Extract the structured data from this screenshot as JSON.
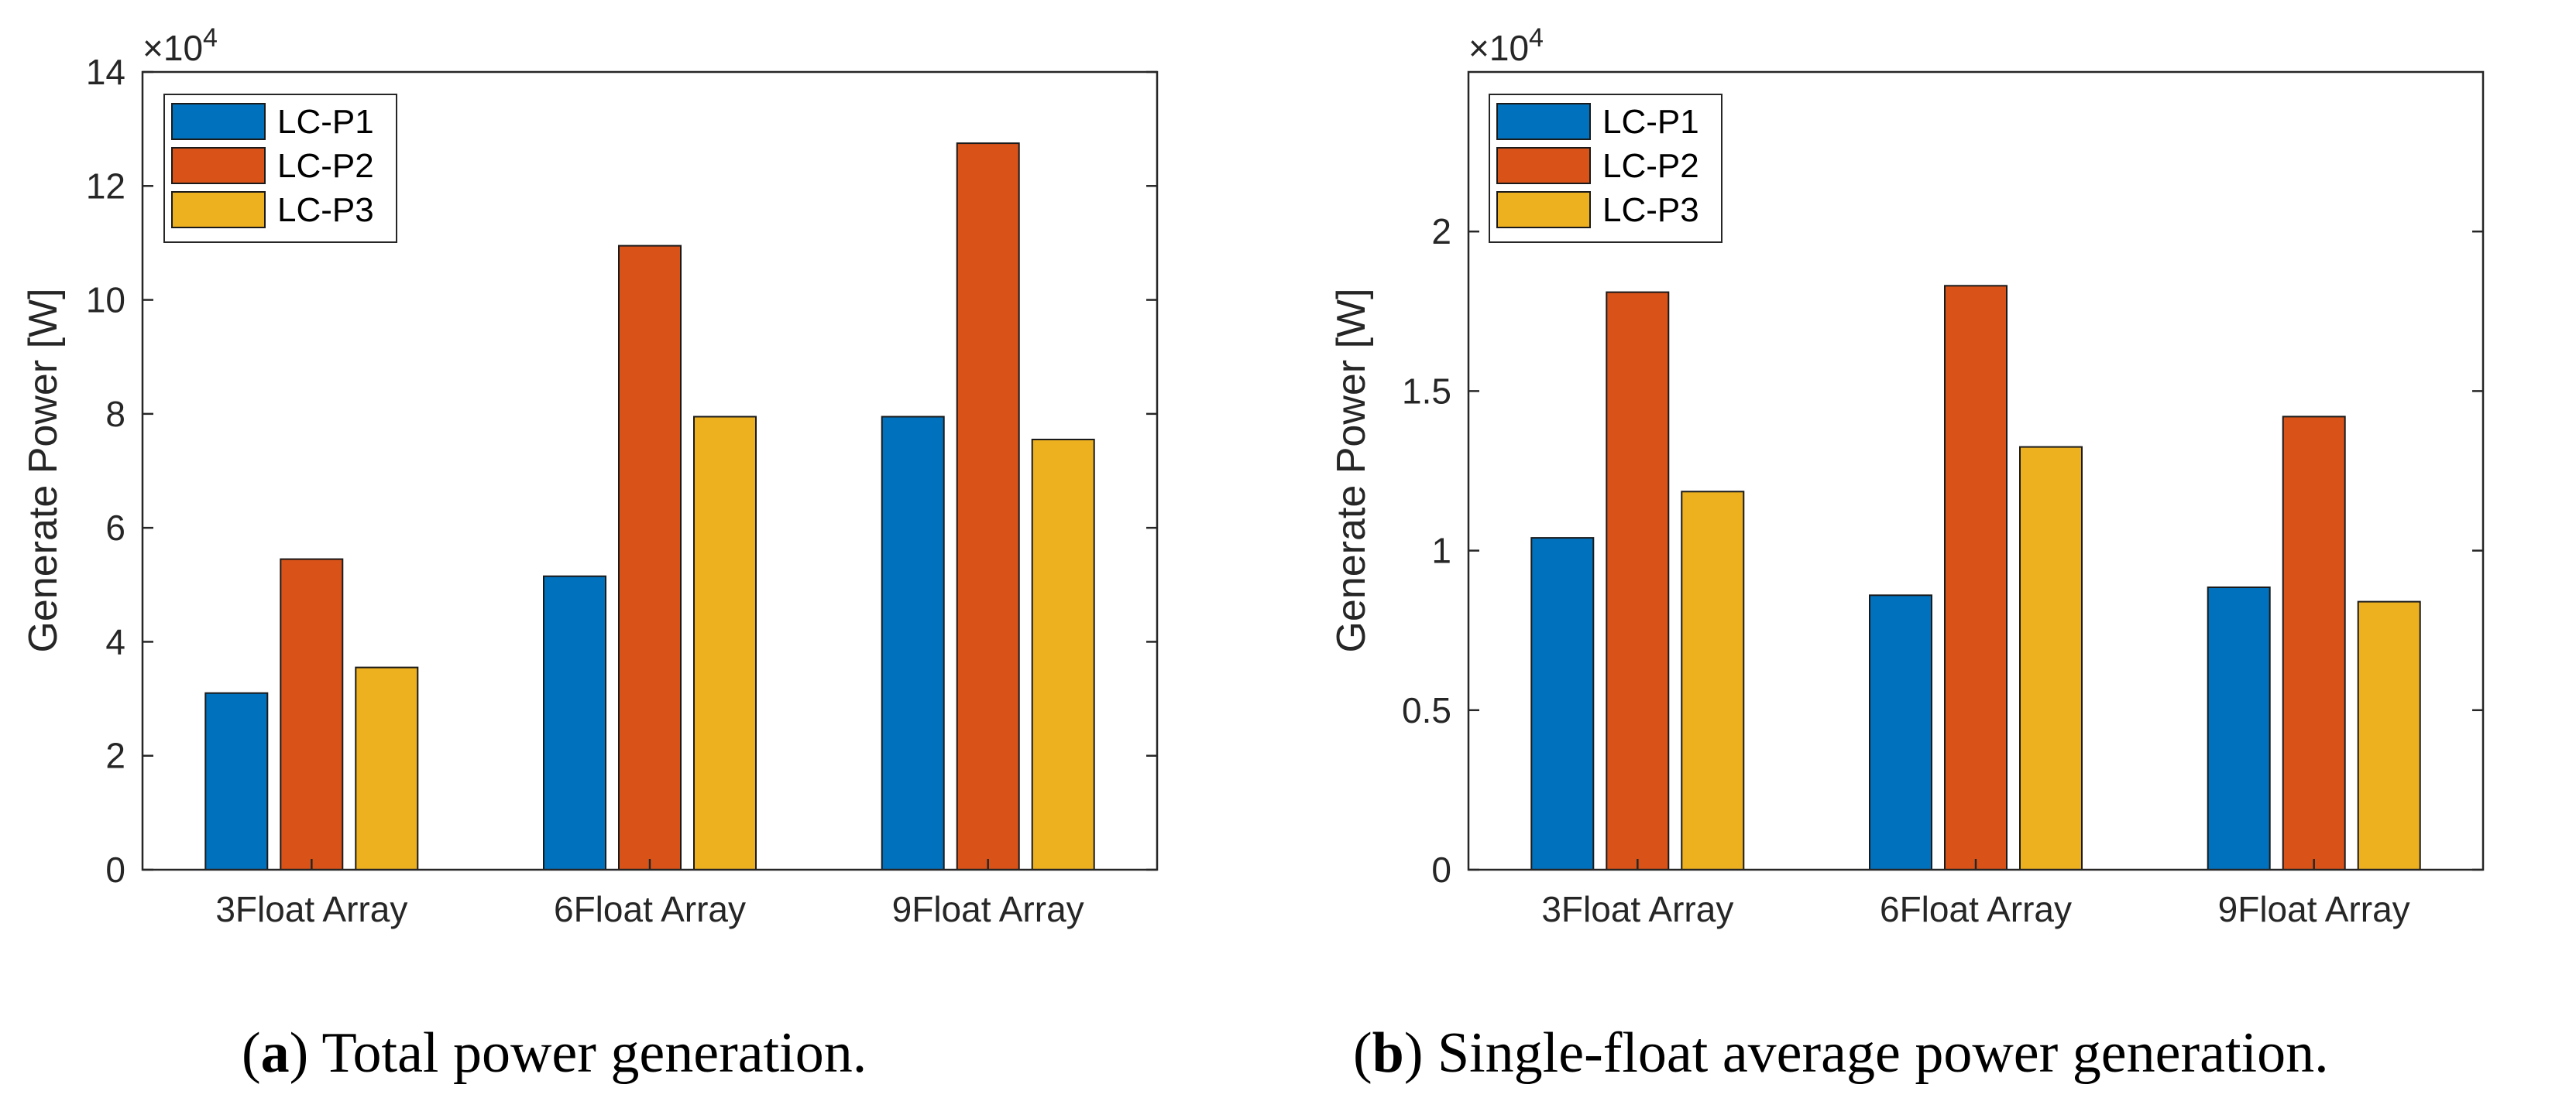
{
  "colors": {
    "LC-P1": "#0072BD",
    "LC-P2": "#D95319",
    "LC-P3": "#EDB120"
  },
  "chart_data": [
    {
      "type": "bar",
      "title": "",
      "xlabel": "",
      "ylabel": "Generate Power [W]",
      "exponent_base": "×10",
      "exponent_power": "4",
      "categories": [
        "3Float Array",
        "6Float Array",
        "9Float Array"
      ],
      "series": [
        {
          "name": "LC-P1",
          "values": [
            3.1,
            5.15,
            7.95
          ]
        },
        {
          "name": "LC-P2",
          "values": [
            5.45,
            10.95,
            12.75
          ]
        },
        {
          "name": "LC-P3",
          "values": [
            3.55,
            7.95,
            7.55
          ]
        }
      ],
      "ylim": [
        0,
        14
      ],
      "yticks": [
        0,
        2,
        4,
        6,
        8,
        10,
        12,
        14
      ],
      "ytick_labels": [
        "0",
        "2",
        "4",
        "6",
        "8",
        "10",
        "12",
        "14"
      ],
      "legend_position": "top-left",
      "caption_label": "a",
      "caption_text": "Total power generation."
    },
    {
      "type": "bar",
      "title": "",
      "xlabel": "",
      "ylabel": "Generate Power [W]",
      "exponent_base": "×10",
      "exponent_power": "4",
      "categories": [
        "3Float Array",
        "6Float Array",
        "9Float Array"
      ],
      "series": [
        {
          "name": "LC-P1",
          "values": [
            1.04,
            0.86,
            0.885
          ]
        },
        {
          "name": "LC-P2",
          "values": [
            1.81,
            1.83,
            1.42
          ]
        },
        {
          "name": "LC-P3",
          "values": [
            1.185,
            1.325,
            0.84
          ]
        }
      ],
      "ylim": [
        0,
        2.5
      ],
      "yticks": [
        0,
        0.5,
        1,
        1.5,
        2
      ],
      "ytick_labels": [
        "0",
        "0.5",
        "1",
        "1.5",
        "2"
      ],
      "legend_position": "top-left",
      "caption_label": "b",
      "caption_text": "Single-float average power generation."
    }
  ]
}
